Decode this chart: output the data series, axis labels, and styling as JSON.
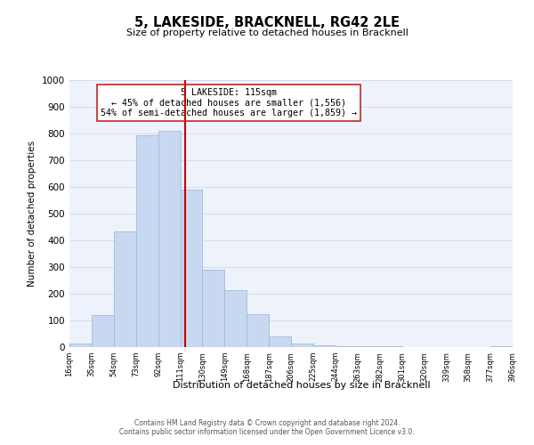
{
  "title": "5, LAKESIDE, BRACKNELL, RG42 2LE",
  "subtitle": "Size of property relative to detached houses in Bracknell",
  "xlabel": "Distribution of detached houses by size in Bracknell",
  "ylabel": "Number of detached properties",
  "bar_color": "#c8d8f0",
  "bar_edge_color": "#a0bcd8",
  "annotation_text": "5 LAKESIDE: 115sqm\n← 45% of detached houses are smaller (1,556)\n54% of semi-detached houses are larger (1,859) →",
  "vline_x": 115,
  "vline_color": "#cc0000",
  "ylim": [
    0,
    1000
  ],
  "yticks": [
    0,
    100,
    200,
    300,
    400,
    500,
    600,
    700,
    800,
    900,
    1000
  ],
  "bin_edges": [
    16,
    35,
    54,
    73,
    92,
    111,
    130,
    149,
    168,
    187,
    206,
    225,
    244,
    263,
    282,
    301,
    320,
    339,
    358,
    377,
    396
  ],
  "bin_heights": [
    15,
    120,
    435,
    795,
    810,
    590,
    290,
    215,
    125,
    40,
    13,
    8,
    5,
    3,
    2,
    1,
    0,
    0,
    0,
    5
  ],
  "tick_labels": [
    "16sqm",
    "35sqm",
    "54sqm",
    "73sqm",
    "92sqm",
    "111sqm",
    "130sqm",
    "149sqm",
    "168sqm",
    "187sqm",
    "206sqm",
    "225sqm",
    "244sqm",
    "263sqm",
    "282sqm",
    "301sqm",
    "320sqm",
    "339sqm",
    "358sqm",
    "377sqm",
    "396sqm"
  ],
  "footer_text": "Contains HM Land Registry data © Crown copyright and database right 2024.\nContains public sector information licensed under the Open Government Licence v3.0.",
  "bg_color": "#eef2fb",
  "grid_color": "#d4dced"
}
